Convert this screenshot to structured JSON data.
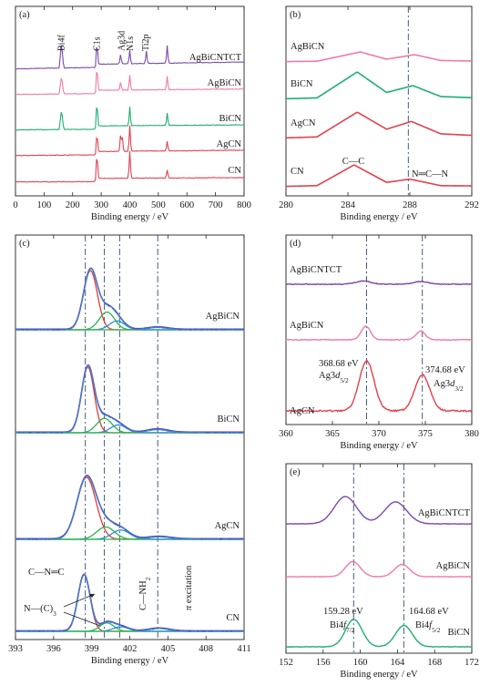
{
  "colors": {
    "AgBiCNTCT": "#7b4aa8",
    "AgBiCN": "#f07aa8",
    "BiCN": "#1fae72",
    "AgCN": "#e0414f",
    "CN": "#e0414f",
    "fit_envelope": "#6a3fae",
    "fit_red": "#e53b38",
    "fit_green": "#2bb24c",
    "fit_blue": "#2a8fd8",
    "refline": "#2d4a6a"
  },
  "chart_data": [
    {
      "panel": "(a)",
      "type": "line",
      "xlabel": "Binding energy / eV",
      "xlim": [
        0,
        800
      ],
      "xticks": [
        "0",
        "100",
        "200",
        "300",
        "400",
        "500",
        "600",
        "700",
        "800"
      ],
      "peak_labels": [
        "Bi4f",
        "C1s",
        "Ag3d",
        "N1s",
        "Ti2p"
      ],
      "series": [
        {
          "name": "AgBiCNTCT",
          "points": [
            [
              0,
              0.02
            ],
            [
              100,
              0.06
            ],
            [
              159,
              0.8
            ],
            [
              164,
              0.55
            ],
            [
              285,
              0.9
            ],
            [
              368,
              0.35
            ],
            [
              400,
              0.5
            ],
            [
              458,
              0.45
            ],
            [
              531,
              0.65
            ],
            [
              700,
              0.2
            ],
            [
              800,
              0.24
            ]
          ]
        },
        {
          "name": "AgBiCN",
          "points": [
            [
              0,
              0.02
            ],
            [
              100,
              0.04
            ],
            [
              159,
              0.55
            ],
            [
              164,
              0.4
            ],
            [
              285,
              0.95
            ],
            [
              368,
              0.3
            ],
            [
              400,
              0.55
            ],
            [
              531,
              0.5
            ],
            [
              700,
              0.12
            ],
            [
              800,
              0.15
            ]
          ]
        },
        {
          "name": "BiCN",
          "points": [
            [
              0,
              0.02
            ],
            [
              100,
              0.04
            ],
            [
              159,
              0.6
            ],
            [
              164,
              0.45
            ],
            [
              285,
              0.95
            ],
            [
              400,
              0.7
            ],
            [
              531,
              0.45
            ],
            [
              700,
              0.1
            ],
            [
              800,
              0.13
            ]
          ]
        },
        {
          "name": "AgCN",
          "points": [
            [
              0,
              0.02
            ],
            [
              100,
              0.03
            ],
            [
              285,
              0.75
            ],
            [
              368,
              0.6
            ],
            [
              374,
              0.5
            ],
            [
              400,
              0.95
            ],
            [
              531,
              0.35
            ],
            [
              700,
              0.12
            ],
            [
              800,
              0.14
            ]
          ]
        },
        {
          "name": "CN",
          "points": [
            [
              0,
              0.02
            ],
            [
              100,
              0.02
            ],
            [
              285,
              1.0
            ],
            [
              400,
              1.0
            ],
            [
              531,
              0.3
            ],
            [
              700,
              0.08
            ],
            [
              800,
              0.08
            ]
          ]
        }
      ]
    },
    {
      "panel": "(b)",
      "type": "line",
      "xlabel": "Binding energy / eV",
      "xlim": [
        280,
        292
      ],
      "xticks": [
        "280",
        "284",
        "288",
        "292"
      ],
      "reference_line_x": 287.9,
      "annotations": [
        "C—C",
        "N═C—N"
      ],
      "series": [
        {
          "name": "AgBiCN",
          "points": [
            [
              280,
              0.02
            ],
            [
              282,
              0.04
            ],
            [
              284.8,
              0.55
            ],
            [
              286.5,
              0.15
            ],
            [
              288.3,
              0.4
            ],
            [
              290,
              0.08
            ],
            [
              292,
              0.05
            ]
          ]
        },
        {
          "name": "BiCN",
          "points": [
            [
              280,
              0.02
            ],
            [
              282,
              0.05
            ],
            [
              284.6,
              1.0
            ],
            [
              286.5,
              0.25
            ],
            [
              288.2,
              0.5
            ],
            [
              290,
              0.1
            ],
            [
              292,
              0.06
            ]
          ]
        },
        {
          "name": "AgCN",
          "points": [
            [
              280,
              0.02
            ],
            [
              282,
              0.05
            ],
            [
              284.6,
              0.85
            ],
            [
              286.5,
              0.3
            ],
            [
              288.1,
              0.55
            ],
            [
              290,
              0.15
            ],
            [
              292,
              0.1
            ]
          ]
        },
        {
          "name": "CN",
          "points": [
            [
              280,
              0.02
            ],
            [
              282,
              0.05
            ],
            [
              284.4,
              1.0
            ],
            [
              286.5,
              0.2
            ],
            [
              288.0,
              0.35
            ],
            [
              290,
              0.05
            ],
            [
              292,
              0.04
            ]
          ]
        }
      ]
    },
    {
      "panel": "(c)",
      "type": "line",
      "xlabel": "Binding energy / eV",
      "xlim": [
        393,
        411
      ],
      "xticks": [
        "393",
        "396",
        "399",
        "402",
        "405",
        "408",
        "411"
      ],
      "reference_lines_x": [
        398.5,
        400.0,
        401.2,
        404.2
      ],
      "annotations": [
        "C—N═C",
        "N—(C)3",
        "C—NH2",
        "π excitation"
      ],
      "series": [
        {
          "name": "AgBiCN",
          "envelope_peaks": [
            [
              398.9,
              1.0,
              0.55
            ],
            [
              400.2,
              0.3,
              0.6
            ],
            [
              401.0,
              0.15,
              0.6
            ],
            [
              404.2,
              0.04,
              0.8
            ]
          ]
        },
        {
          "name": "BiCN",
          "envelope_peaks": [
            [
              398.7,
              1.0,
              0.5
            ],
            [
              400.0,
              0.22,
              0.6
            ],
            [
              401.1,
              0.12,
              0.6
            ],
            [
              404.2,
              0.05,
              0.8
            ]
          ]
        },
        {
          "name": "AgCN",
          "envelope_peaks": [
            [
              398.6,
              1.0,
              0.75
            ],
            [
              400.1,
              0.2,
              0.7
            ],
            [
              401.3,
              0.15,
              0.7
            ],
            [
              404.3,
              0.04,
              0.9
            ]
          ]
        },
        {
          "name": "CN",
          "envelope_peaks": [
            [
              398.4,
              1.0,
              0.48
            ],
            [
              400.2,
              0.15,
              0.55
            ],
            [
              401.3,
              0.08,
              0.6
            ],
            [
              404.3,
              0.05,
              0.8
            ]
          ]
        }
      ]
    },
    {
      "panel": "(d)",
      "type": "line",
      "xlabel": "Binding energy / eV",
      "xlim": [
        360,
        380
      ],
      "xticks": [
        "360",
        "365",
        "370",
        "375",
        "380"
      ],
      "reference_lines_x": [
        368.68,
        374.68
      ],
      "annotations": [
        "368.68 eV",
        "Ag3d5/2",
        "374.68 eV",
        "Ag3d3/2"
      ],
      "series": [
        {
          "name": "AgBiCNTCT",
          "peaks": [
            [
              368.3,
              0.12,
              0.8
            ],
            [
              374.5,
              0.1,
              0.8
            ]
          ]
        },
        {
          "name": "AgBiCN",
          "peaks": [
            [
              368.6,
              0.5,
              0.5
            ],
            [
              374.5,
              0.32,
              0.5
            ]
          ]
        },
        {
          "name": "AgCN",
          "peaks": [
            [
              368.68,
              1.0,
              0.8
            ],
            [
              374.68,
              0.72,
              0.8
            ]
          ]
        }
      ]
    },
    {
      "panel": "(e)",
      "type": "line",
      "xlabel": "Binding energy / eV",
      "xlim": [
        152,
        172
      ],
      "xticks": [
        "152",
        "156",
        "160",
        "164",
        "168",
        "172"
      ],
      "reference_lines_x": [
        159.28,
        164.68
      ],
      "annotations": [
        "159.28 eV",
        "Bi4f7/2",
        "164.68 eV",
        "Bi4f5/2"
      ],
      "series": [
        {
          "name": "AgBiCNTCT",
          "peaks": [
            [
              158.4,
              1.0,
              1.2
            ],
            [
              163.8,
              0.8,
              1.2
            ]
          ]
        },
        {
          "name": "AgBiCN",
          "peaks": [
            [
              159.2,
              0.55,
              0.8
            ],
            [
              164.5,
              0.45,
              0.8
            ]
          ]
        },
        {
          "name": "BiCN",
          "peaks": [
            [
              159.3,
              1.0,
              0.9
            ],
            [
              164.7,
              0.78,
              0.9
            ]
          ]
        }
      ]
    }
  ]
}
